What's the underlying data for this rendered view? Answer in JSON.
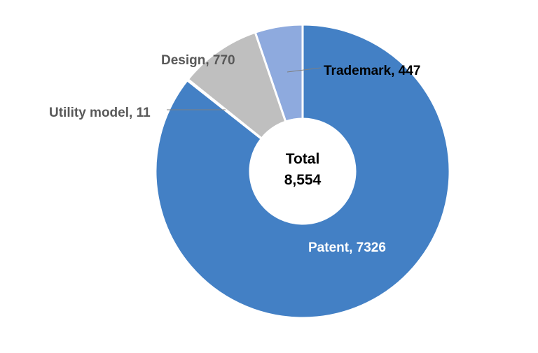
{
  "chart_data": {
    "type": "pie",
    "center_label": {
      "title": "Total",
      "value": "8,554"
    },
    "slices": [
      {
        "name": "Patent",
        "value": 7326,
        "label": "Patent, 7326",
        "color": "#4380c5"
      },
      {
        "name": "Utility model",
        "value": 11,
        "label": "Utility model, 11",
        "color": "#4a86c9"
      },
      {
        "name": "Design",
        "value": 770,
        "label": "Design, 770",
        "color": "#bfbfbf"
      },
      {
        "name": "Trademark",
        "value": 447,
        "label": "Trademark, 447",
        "color": "#8eaade"
      }
    ],
    "label_colors": {
      "inside": "#ffffff",
      "outside": "#595959",
      "trademark": "#000000"
    }
  }
}
